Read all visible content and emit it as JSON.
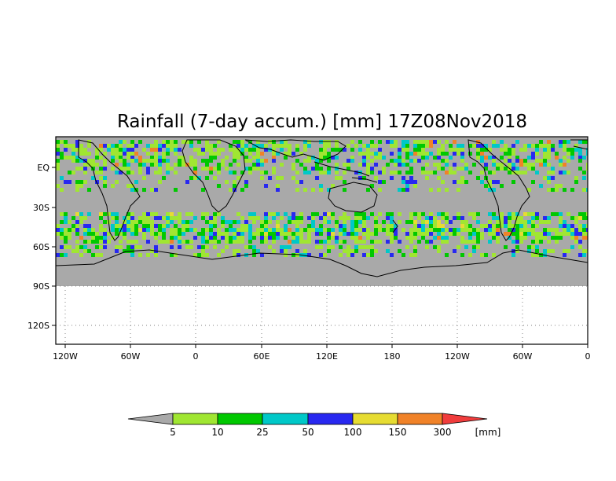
{
  "title": "Rainfall (7-day accum.) [mm] 17Z08Nov2018",
  "y_axis": {
    "labels": [
      "EQ",
      "30S",
      "60S",
      "90S",
      "120S"
    ]
  },
  "x_axis": {
    "labels": [
      "120W",
      "60W",
      "0",
      "60E",
      "120E",
      "180",
      "120W",
      "60W",
      "0"
    ]
  },
  "colorbar": {
    "unit": "[mm]",
    "thresholds": [
      "5",
      "10",
      "25",
      "50",
      "100",
      "150",
      "300"
    ],
    "colors": [
      "#a9a9a9",
      "#a0e632",
      "#00c800",
      "#00c8c8",
      "#2828f0",
      "#e6dc32",
      "#f08228",
      "#f03c3c"
    ]
  },
  "map": {
    "ocean_color": "#a9a9a9",
    "coastline_color": "#000000",
    "grid": true
  }
}
